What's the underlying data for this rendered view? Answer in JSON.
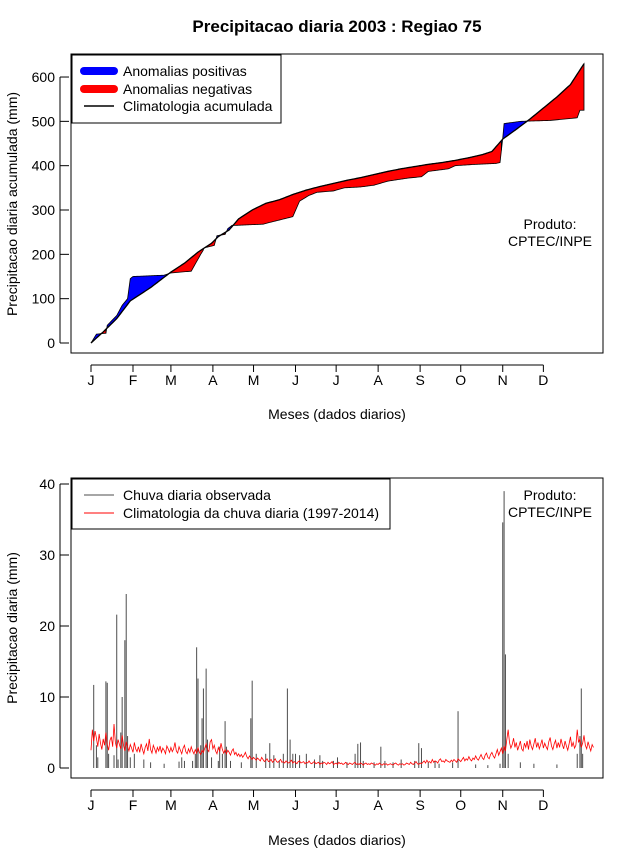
{
  "title": "Precipitacao diaria 2003 : Regiao 75",
  "colors": {
    "positive": "#0000ff",
    "negative": "#ff0000",
    "climatology": "#000000",
    "observed": "#4d4d4d",
    "clim_daily": "#ff0000"
  },
  "chart_data": [
    {
      "type": "area",
      "title": "Precipitacao diaria 2003 : Regiao 75",
      "xlabel": "Meses (dados diarios)",
      "ylabel": "Precipitacao diaria acumulada (mm)",
      "xlim": [
        1,
        365
      ],
      "ylim": [
        0,
        630
      ],
      "ytick_values": [
        0,
        100,
        200,
        300,
        400,
        500,
        600
      ],
      "month_labels": [
        "J",
        "F",
        "M",
        "A",
        "M",
        "J",
        "J",
        "A",
        "S",
        "O",
        "N",
        "D"
      ],
      "month_start_days": [
        1,
        32,
        60,
        91,
        121,
        152,
        182,
        213,
        244,
        274,
        305,
        335
      ],
      "legend": [
        "Anomalias positivas",
        "Anomalias negativas",
        "Climatologia acumulada"
      ],
      "annotation": [
        "Produto:",
        "CPTEC/INPE"
      ],
      "climatology_points": [
        [
          1,
          0
        ],
        [
          10,
          25
        ],
        [
          20,
          55
        ],
        [
          30,
          95
        ],
        [
          35,
          105
        ],
        [
          45,
          125
        ],
        [
          60,
          160
        ],
        [
          70,
          180
        ],
        [
          80,
          205
        ],
        [
          90,
          225
        ],
        [
          95,
          240
        ],
        [
          103,
          255
        ],
        [
          110,
          280
        ],
        [
          120,
          300
        ],
        [
          130,
          315
        ],
        [
          140,
          323
        ],
        [
          150,
          335
        ],
        [
          160,
          345
        ],
        [
          170,
          353
        ],
        [
          180,
          360
        ],
        [
          190,
          367
        ],
        [
          200,
          373
        ],
        [
          210,
          380
        ],
        [
          220,
          387
        ],
        [
          230,
          393
        ],
        [
          240,
          398
        ],
        [
          250,
          403
        ],
        [
          260,
          407
        ],
        [
          270,
          412
        ],
        [
          280,
          418
        ],
        [
          290,
          425
        ],
        [
          297,
          432
        ],
        [
          305,
          460
        ],
        [
          315,
          482
        ],
        [
          325,
          505
        ],
        [
          335,
          530
        ],
        [
          345,
          555
        ],
        [
          355,
          583
        ],
        [
          365,
          630
        ]
      ],
      "observed_points": [
        [
          1,
          0
        ],
        [
          5,
          20
        ],
        [
          12,
          22
        ],
        [
          13,
          40
        ],
        [
          20,
          62
        ],
        [
          24,
          85
        ],
        [
          28,
          100
        ],
        [
          30,
          145
        ],
        [
          32,
          150
        ],
        [
          55,
          153
        ],
        [
          60,
          158
        ],
        [
          75,
          162
        ],
        [
          82,
          200
        ],
        [
          85,
          215
        ],
        [
          92,
          220
        ],
        [
          94,
          242
        ],
        [
          100,
          245
        ],
        [
          102,
          258
        ],
        [
          105,
          265
        ],
        [
          128,
          268
        ],
        [
          133,
          272
        ],
        [
          150,
          285
        ],
        [
          155,
          320
        ],
        [
          162,
          333
        ],
        [
          168,
          340
        ],
        [
          180,
          343
        ],
        [
          188,
          350
        ],
        [
          200,
          352
        ],
        [
          210,
          356
        ],
        [
          220,
          365
        ],
        [
          235,
          372
        ],
        [
          245,
          375
        ],
        [
          250,
          387
        ],
        [
          265,
          393
        ],
        [
          270,
          400
        ],
        [
          285,
          403
        ],
        [
          300,
          405
        ],
        [
          303,
          407
        ],
        [
          305,
          462
        ],
        [
          306,
          495
        ],
        [
          318,
          500
        ],
        [
          340,
          502
        ],
        [
          360,
          508
        ],
        [
          362,
          525
        ],
        [
          365,
          525
        ]
      ]
    },
    {
      "type": "line",
      "xlabel": "Meses (dados diarios)",
      "ylabel": "Precipitacao diaria (mm)",
      "xlim": [
        1,
        365
      ],
      "ylim": [
        0,
        40
      ],
      "ytick_values": [
        0,
        10,
        20,
        30,
        40
      ],
      "month_labels": [
        "J",
        "F",
        "M",
        "A",
        "M",
        "J",
        "J",
        "A",
        "S",
        "O",
        "N",
        "D"
      ],
      "month_start_days": [
        1,
        32,
        60,
        91,
        121,
        152,
        182,
        213,
        244,
        274,
        305,
        335
      ],
      "legend": [
        "Chuva diaria observada",
        "Climatologia da chuva diaria (1997-2014)"
      ],
      "annotation": [
        "Produto:",
        "CPTEC/INPE"
      ],
      "observed_bars": [
        [
          3,
          11.7
        ],
        [
          5,
          3.2
        ],
        [
          6,
          1.5
        ],
        [
          12,
          12.2
        ],
        [
          13,
          12.0
        ],
        [
          14,
          2.0
        ],
        [
          18,
          1.8
        ],
        [
          20,
          21.6
        ],
        [
          21,
          1.2
        ],
        [
          23,
          5.0
        ],
        [
          24,
          10.0
        ],
        [
          26,
          18.0
        ],
        [
          27,
          24.5
        ],
        [
          28,
          4.5
        ],
        [
          30,
          1.5
        ],
        [
          33,
          2.0
        ],
        [
          40,
          1.2
        ],
        [
          45,
          0.8
        ],
        [
          55,
          0.6
        ],
        [
          66,
          0.9
        ],
        [
          68,
          1.5
        ],
        [
          70,
          1.0
        ],
        [
          76,
          1.0
        ],
        [
          78,
          2.0
        ],
        [
          79,
          17.0
        ],
        [
          80,
          12.6
        ],
        [
          82,
          3.2
        ],
        [
          83,
          7.0
        ],
        [
          84,
          11.2
        ],
        [
          86,
          14.0
        ],
        [
          87,
          4.0
        ],
        [
          90,
          1.5
        ],
        [
          95,
          1.0
        ],
        [
          96,
          3.0
        ],
        [
          98,
          2.0
        ],
        [
          100,
          6.6
        ],
        [
          101,
          3.0
        ],
        [
          104,
          1.0
        ],
        [
          112,
          0.8
        ],
        [
          119,
          7.0
        ],
        [
          120,
          12.3
        ],
        [
          123,
          2.0
        ],
        [
          130,
          2.0
        ],
        [
          133,
          3.5
        ],
        [
          136,
          1.8
        ],
        [
          140,
          1.0
        ],
        [
          143,
          2.0
        ],
        [
          146,
          11.2
        ],
        [
          148,
          4.0
        ],
        [
          150,
          2.0
        ],
        [
          152,
          2.0
        ],
        [
          155,
          1.8
        ],
        [
          160,
          2.0
        ],
        [
          166,
          1.2
        ],
        [
          170,
          1.8
        ],
        [
          172,
          1.0
        ],
        [
          180,
          1.0
        ],
        [
          183,
          1.5
        ],
        [
          190,
          0.8
        ],
        [
          196,
          2.0
        ],
        [
          198,
          3.4
        ],
        [
          200,
          3.6
        ],
        [
          202,
          1.0
        ],
        [
          210,
          0.8
        ],
        [
          215,
          3.0
        ],
        [
          218,
          1.0
        ],
        [
          224,
          0.8
        ],
        [
          230,
          1.2
        ],
        [
          240,
          1.0
        ],
        [
          243,
          3.5
        ],
        [
          245,
          2.8
        ],
        [
          250,
          0.8
        ],
        [
          255,
          1.0
        ],
        [
          258,
          0.6
        ],
        [
          268,
          0.8
        ],
        [
          272,
          8.0
        ],
        [
          285,
          0.5
        ],
        [
          294,
          0.4
        ],
        [
          303,
          0.6
        ],
        [
          305,
          34.6
        ],
        [
          306,
          39.0
        ],
        [
          307,
          16.0
        ],
        [
          309,
          2.0
        ],
        [
          318,
          0.8
        ],
        [
          328,
          0.6
        ],
        [
          345,
          0.5
        ],
        [
          360,
          2.0
        ],
        [
          362,
          4.5
        ],
        [
          363,
          11.2
        ],
        [
          364,
          2.0
        ]
      ],
      "climatology_daily": [
        2.5,
        5.4,
        3.8,
        5.2,
        4.2,
        3.0,
        4.8,
        3.5,
        2.6,
        4.1,
        3.2,
        5.0,
        3.3,
        2.5,
        3.9,
        4.4,
        3.0,
        6.2,
        3.6,
        2.8,
        4.0,
        3.3,
        2.7,
        4.6,
        3.2,
        2.4,
        3.7,
        3.0,
        2.4,
        3.3,
        2.8,
        2.2,
        3.6,
        2.7,
        2.3,
        3.0,
        2.2,
        3.4,
        2.6,
        2.0,
        2.9,
        3.4,
        2.4,
        4.1,
        2.6,
        2.1,
        3.2,
        2.7,
        2.1,
        2.9,
        2.4,
        3.1,
        2.2,
        2.8,
        2.5,
        2.0,
        3.1,
        2.7,
        2.2,
        2.9,
        2.3,
        2.7,
        3.6,
        2.4,
        2.1,
        3.0,
        2.5,
        2.0,
        2.8,
        3.2,
        2.3,
        2.0,
        2.7,
        2.2,
        3.0,
        2.4,
        2.0,
        2.6,
        2.1,
        2.9,
        2.2,
        1.9,
        2.5,
        2.2,
        2.8,
        3.4,
        2.6,
        2.3,
        3.7,
        4.0,
        2.7,
        3.2,
        2.4,
        2.0,
        2.9,
        2.3,
        3.5,
        2.6,
        2.1,
        2.6,
        2.0,
        2.5,
        2.2,
        1.8,
        2.4,
        2.7,
        1.9,
        2.2,
        1.7,
        2.0,
        1.6,
        1.9,
        1.5,
        1.8,
        2.2,
        1.6,
        1.3,
        1.7,
        1.4,
        1.2,
        1.5,
        1.3,
        1.1,
        1.4,
        1.2,
        1.0,
        1.5,
        1.2,
        0.9,
        1.1,
        1.3,
        0.9,
        1.0,
        1.2,
        0.8,
        1.0,
        1.3,
        0.9,
        0.8,
        1.0,
        1.2,
        0.8,
        0.9,
        0.7,
        1.0,
        0.8,
        0.7,
        0.9,
        1.1,
        0.7,
        0.9,
        0.8,
        0.6,
        0.9,
        1.0,
        0.7,
        0.8,
        0.9,
        0.6,
        0.8,
        0.7,
        1.0,
        0.7,
        0.6,
        0.8,
        0.9,
        0.6,
        0.7,
        0.8,
        0.5,
        0.7,
        0.6,
        0.8,
        0.7,
        0.5,
        0.8,
        0.6,
        0.7,
        0.9,
        0.5,
        0.6,
        0.7,
        0.5,
        0.8,
        0.6,
        0.7,
        0.5,
        0.6,
        0.8,
        0.6,
        0.5,
        0.7,
        0.6,
        0.5,
        0.7,
        0.8,
        0.5,
        0.6,
        0.5,
        0.7,
        0.6,
        0.4,
        0.6,
        0.7,
        0.5,
        0.6,
        0.5,
        0.7,
        0.6,
        0.5,
        0.4,
        0.6,
        0.5,
        0.7,
        0.5,
        0.4,
        0.6,
        0.5,
        0.6,
        0.4,
        0.5,
        0.6,
        0.5,
        0.4,
        0.6,
        0.7,
        0.5,
        0.4,
        0.6,
        0.5,
        0.6,
        0.4,
        0.5,
        0.7,
        0.6,
        0.5,
        0.8,
        0.6,
        0.5,
        0.7,
        0.9,
        0.6,
        0.5,
        0.7,
        0.6,
        0.8,
        1.0,
        0.7,
        1.1,
        0.8,
        0.9,
        0.7,
        1.2,
        0.8,
        1.0,
        0.9,
        0.7,
        1.1,
        1.3,
        0.9,
        1.0,
        0.8,
        1.2,
        1.0,
        0.9,
        0.8,
        1.1,
        0.9,
        1.2,
        1.0,
        0.8,
        1.3,
        1.1,
        0.9,
        1.2,
        1.5,
        1.0,
        1.3,
        1.1,
        1.6,
        1.2,
        1.0,
        1.4,
        1.2,
        1.7,
        1.3,
        1.1,
        1.5,
        1.9,
        1.4,
        1.2,
        1.8,
        2.1,
        1.5,
        1.3,
        1.9,
        2.2,
        1.7,
        1.4,
        2.0,
        2.6,
        1.8,
        2.3,
        2.8,
        2.0,
        3.1,
        2.4,
        4.0,
        5.4,
        3.6,
        2.8,
        3.3,
        4.2,
        2.9,
        3.6,
        2.5,
        3.1,
        3.8,
        2.7,
        2.4,
        3.5,
        2.9,
        3.8,
        2.6,
        4.0,
        3.1,
        2.6,
        3.4,
        4.2,
        2.9,
        3.6,
        2.7,
        3.3,
        4.0,
        2.8,
        3.5,
        3.0,
        2.6,
        3.7,
        4.3,
        3.1,
        2.6,
        3.4,
        3.9,
        2.8,
        3.6,
        2.9,
        4.1,
        3.3,
        2.7,
        3.8,
        3.1,
        2.5,
        3.4,
        4.4,
        3.0,
        3.6,
        2.8,
        3.2,
        5.4,
        3.6,
        4.1,
        2.9,
        3.5,
        4.6,
        3.2,
        2.7,
        3.7,
        3.0,
        2.4,
        3.3,
        2.9
      ]
    }
  ]
}
